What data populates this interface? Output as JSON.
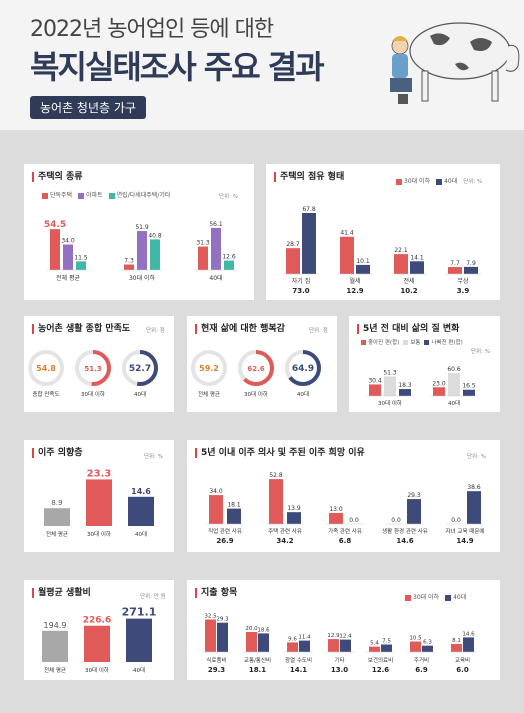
{
  "header": {
    "title_line1": "2022년 농어업인 등에 대한",
    "title_line2": "복지실태조사 주요 결과",
    "subtitle": "농어촌 청년층 가구"
  },
  "colors": {
    "red": "#e05a5a",
    "navy": "#3d4a7a",
    "purple": "#9370c4",
    "teal": "#3fb9a5",
    "gray": "#a8a8a8"
  },
  "panels": {
    "housing_type": {
      "title": "주택의 종류",
      "unit": "단위: %",
      "legend": [
        "단독주택",
        "아파트",
        "연립/다세대주택/기타"
      ],
      "groups": [
        {
          "label": "전체 평균",
          "values": [
            54.5,
            34.0,
            11.5
          ]
        },
        {
          "label": "30대 이하",
          "values": [
            7.3,
            51.9,
            40.8
          ]
        },
        {
          "label": "40대",
          "values": [
            31.3,
            56.1,
            12.6
          ]
        }
      ]
    },
    "tenure": {
      "title": "주택의 점유 형태",
      "unit": "단위: %",
      "legend": [
        "30대 이하",
        "40대"
      ],
      "groups": [
        {
          "label": "자기 집",
          "values": [
            28.7,
            67.8
          ],
          "total": "73.0"
        },
        {
          "label": "월세",
          "values": [
            41.4,
            10.1
          ],
          "total": "12.9"
        },
        {
          "label": "전세",
          "values": [
            22.1,
            14.1
          ],
          "total": "10.2"
        },
        {
          "label": "무상",
          "values": [
            7.7,
            7.9
          ],
          "total": "3.9"
        }
      ]
    },
    "satisfaction": {
      "title": "농어촌 생활 종합 만족도",
      "unit": "단위: 점",
      "items": [
        {
          "label": "종합 만족도",
          "value": "54.8"
        },
        {
          "label": "30대 이하",
          "value": "51.3"
        },
        {
          "label": "40대",
          "value": "52.7"
        }
      ]
    },
    "happiness": {
      "title": "현재 삶에 대한 행복감",
      "unit": "단위: 점",
      "items": [
        {
          "label": "전체 평균",
          "value": "59.2"
        },
        {
          "label": "30대 이하",
          "value": "62.6"
        },
        {
          "label": "40대",
          "value": "64.9"
        }
      ]
    },
    "quality_change": {
      "title": "5년 전 대비 삶의 질 변화",
      "unit": "단위: %",
      "legend": [
        "좋아진 편(합)",
        "보통",
        "나빠진 편(합)"
      ],
      "groups": [
        {
          "label": "30대 이하",
          "values": [
            30.4,
            51.3,
            18.3
          ]
        },
        {
          "label": "40대",
          "values": [
            23.0,
            60.6,
            16.5
          ]
        }
      ]
    },
    "migration": {
      "title": "이주 의향층",
      "unit": "단위: %",
      "items": [
        {
          "label": "전체 평균",
          "value": 8.9
        },
        {
          "label": "30대 이하",
          "value": 23.3
        },
        {
          "label": "40대",
          "value": 14.6
        }
      ]
    },
    "migration_reason": {
      "title": "5년 이내 이주 의사 및 주된 이주 희망 이유",
      "unit": "단위: %",
      "groups": [
        {
          "label": "직업 관련 사유",
          "values": [
            34.0,
            18.1
          ],
          "total": "26.9"
        },
        {
          "label": "주택 관련 사유",
          "values": [
            52.8,
            13.9
          ],
          "total": "34.2"
        },
        {
          "label": "가족 관련 사유",
          "values": [
            13.0,
            0.0
          ],
          "total": "6.8"
        },
        {
          "label": "생활 환경 관련 사유",
          "values": [
            0.0,
            29.3
          ],
          "total": "14.6"
        },
        {
          "label": "자녀 교육 때문에",
          "values": [
            0.0,
            38.6
          ],
          "total": "14.9"
        }
      ]
    },
    "living_cost": {
      "title": "월평균 생활비",
      "unit": "단위: 만 원",
      "items": [
        {
          "label": "전체 평균",
          "value": 194.9
        },
        {
          "label": "30대 이하",
          "value": 226.6
        },
        {
          "label": "40대",
          "value": 271.1
        }
      ]
    },
    "expense": {
      "title": "지출 항목",
      "legend": [
        "30대 이하",
        "40대"
      ],
      "groups": [
        {
          "label": "식료품비",
          "values": [
            32.5,
            29.3
          ],
          "total": "29.3"
        },
        {
          "label": "교통/통신비",
          "values": [
            20.0,
            18.6
          ],
          "total": "18.1"
        },
        {
          "label": "광열 수도비",
          "values": [
            9.6,
            11.4
          ],
          "total": "14.1"
        },
        {
          "label": "기타",
          "values": [
            12.9,
            12.4
          ],
          "total": "13.0"
        },
        {
          "label": "보건의료비",
          "values": [
            5.4,
            7.5
          ],
          "total": "12.6"
        },
        {
          "label": "주거비",
          "values": [
            10.5,
            6.3
          ],
          "total": "6.9"
        },
        {
          "label": "교육비",
          "values": [
            8.1,
            14.6
          ],
          "total": "6.0"
        }
      ]
    }
  },
  "chart_data": [
    {
      "type": "bar",
      "title": "주택의 종류",
      "categories": [
        "전체 평균",
        "30대 이하",
        "40대"
      ],
      "series": [
        {
          "name": "단독주택",
          "values": [
            54.5,
            7.3,
            31.3
          ]
        },
        {
          "name": "아파트",
          "values": [
            34.0,
            51.9,
            56.1
          ]
        },
        {
          "name": "연립/다세대주택/기타",
          "values": [
            11.5,
            40.8,
            12.6
          ]
        }
      ]
    },
    {
      "type": "bar",
      "title": "주택의 점유 형태",
      "categories": [
        "자기 집",
        "월세",
        "전세",
        "무상"
      ],
      "series": [
        {
          "name": "30대 이하",
          "values": [
            28.7,
            41.4,
            22.1,
            7.7
          ]
        },
        {
          "name": "40대",
          "values": [
            67.8,
            10.1,
            14.1,
            7.9
          ]
        }
      ]
    },
    {
      "type": "bar",
      "title": "농어촌 생활 종합 만족도",
      "categories": [
        "종합 만족도",
        "30대 이하",
        "40대"
      ],
      "values": [
        54.8,
        51.3,
        52.7
      ]
    },
    {
      "type": "bar",
      "title": "현재 삶에 대한 행복감",
      "categories": [
        "전체 평균",
        "30대 이하",
        "40대"
      ],
      "values": [
        59.2,
        62.6,
        64.9
      ]
    },
    {
      "type": "bar",
      "title": "5년 전 대비 삶의 질 변화",
      "categories": [
        "30대 이하",
        "40대"
      ],
      "series": [
        {
          "name": "좋아진 편(합)",
          "values": [
            30.4,
            23.0
          ]
        },
        {
          "name": "보통",
          "values": [
            51.3,
            60.6
          ]
        },
        {
          "name": "나빠진 편(합)",
          "values": [
            18.3,
            16.5
          ]
        }
      ]
    },
    {
      "type": "bar",
      "title": "이주 의향층",
      "categories": [
        "전체 평균",
        "30대 이하",
        "40대"
      ],
      "values": [
        8.9,
        23.3,
        14.6
      ]
    },
    {
      "type": "bar",
      "title": "5년 이내 이주 의사 및 주된 이주 희망 이유",
      "categories": [
        "직업 관련 사유",
        "주택 관련 사유",
        "가족 관련 사유",
        "생활 환경 관련 사유",
        "자녀 교육 때문에"
      ],
      "series": [
        {
          "values": [
            34.0,
            52.8,
            13.0,
            0.0,
            0.0
          ]
        },
        {
          "values": [
            18.1,
            13.9,
            0.0,
            29.3,
            38.6
          ]
        }
      ]
    },
    {
      "type": "bar",
      "title": "월평균 생활비",
      "categories": [
        "전체 평균",
        "30대 이하",
        "40대"
      ],
      "values": [
        194.9,
        226.6,
        271.1
      ]
    },
    {
      "type": "bar",
      "title": "지출 항목",
      "categories": [
        "식료품비",
        "교통/통신비",
        "광열 수도비",
        "기타",
        "보건의료비",
        "주거비",
        "교육비"
      ],
      "series": [
        {
          "name": "30대 이하",
          "values": [
            32.5,
            20.0,
            9.6,
            12.9,
            5.4,
            10.5,
            8.1
          ]
        },
        {
          "name": "40대",
          "values": [
            29.3,
            18.6,
            11.4,
            12.4,
            7.5,
            6.3,
            14.6
          ]
        }
      ]
    }
  ]
}
